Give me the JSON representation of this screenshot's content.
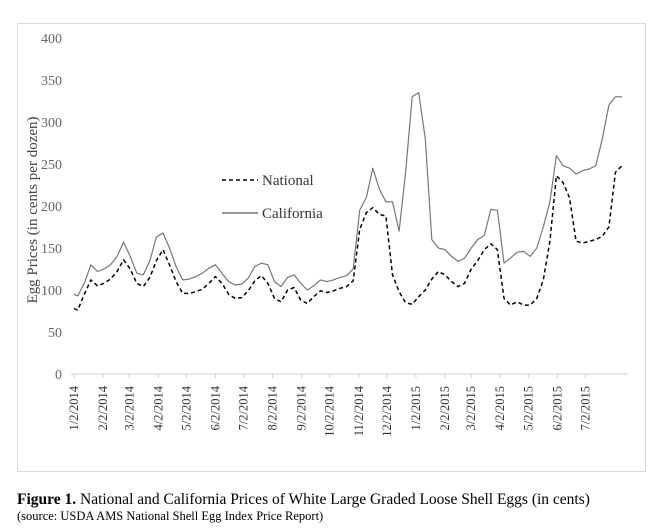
{
  "figure": {
    "label": "Figure 1.",
    "caption": " National and California Prices of White Large Graded Loose Shell Eggs (in cents)",
    "source": "(source: USDA AMS National Shell Egg Index Price Report)"
  },
  "chart_data": {
    "type": "line",
    "title": "",
    "xlabel": "",
    "ylabel": "Egg Prices (in cents per dozen)",
    "ylim": [
      0,
      400
    ],
    "yticks": [
      "0",
      "50",
      "100",
      "150",
      "200",
      "250",
      "300",
      "350",
      "400"
    ],
    "xticks": [
      "1/2/2014",
      "2/2/2014",
      "3/2/2014",
      "4/2/2014",
      "5/2/2014",
      "6/2/2014",
      "7/2/2014",
      "8/2/2014",
      "9/2/2014",
      "10/2/2014",
      "11/2/2014",
      "12/2/2014",
      "1/2/2015",
      "2/2/2015",
      "3/2/2015",
      "4/2/2015",
      "5/2/2015",
      "6/2/2015",
      "7/2/2015"
    ],
    "grid": false,
    "legend_position": "center-left",
    "series": [
      {
        "name": "National",
        "style": "dashed",
        "color": "#000000",
        "x": [
          "2014-01-02",
          "2014-01-06",
          "2014-01-13",
          "2014-01-20",
          "2014-01-27",
          "2014-02-03",
          "2014-02-10",
          "2014-02-17",
          "2014-02-24",
          "2014-03-03",
          "2014-03-10",
          "2014-03-17",
          "2014-03-24",
          "2014-03-31",
          "2014-04-07",
          "2014-04-14",
          "2014-04-21",
          "2014-04-28",
          "2014-05-05",
          "2014-05-12",
          "2014-05-19",
          "2014-05-26",
          "2014-06-02",
          "2014-06-09",
          "2014-06-16",
          "2014-06-23",
          "2014-06-30",
          "2014-07-07",
          "2014-07-14",
          "2014-07-21",
          "2014-07-28",
          "2014-08-04",
          "2014-08-11",
          "2014-08-18",
          "2014-08-25",
          "2014-09-01",
          "2014-09-08",
          "2014-09-15",
          "2014-09-22",
          "2014-09-29",
          "2014-10-06",
          "2014-10-13",
          "2014-10-20",
          "2014-10-27",
          "2014-11-03",
          "2014-11-10",
          "2014-11-17",
          "2014-11-24",
          "2014-12-01",
          "2014-12-08",
          "2014-12-15",
          "2014-12-22",
          "2014-12-29",
          "2015-01-05",
          "2015-01-12",
          "2015-01-19",
          "2015-01-26",
          "2015-02-02",
          "2015-02-09",
          "2015-02-16",
          "2015-02-23",
          "2015-03-02",
          "2015-03-09",
          "2015-03-16",
          "2015-03-23",
          "2015-03-30",
          "2015-04-06",
          "2015-04-13",
          "2015-04-20",
          "2015-04-27",
          "2015-05-04",
          "2015-05-11",
          "2015-05-18",
          "2015-05-25",
          "2015-06-01",
          "2015-06-08",
          "2015-06-15",
          "2015-06-22",
          "2015-06-29",
          "2015-07-06",
          "2015-07-13",
          "2015-07-20",
          "2015-07-27",
          "2015-08-03",
          "2015-08-10"
        ],
        "values": [
          78,
          76,
          95,
          112,
          105,
          108,
          113,
          122,
          136,
          125,
          108,
          104,
          115,
          135,
          148,
          130,
          110,
          96,
          96,
          98,
          101,
          108,
          116,
          108,
          95,
          90,
          91,
          99,
          111,
          117,
          108,
          90,
          86,
          100,
          103,
          88,
          84,
          92,
          99,
          97,
          99,
          102,
          104,
          111,
          172,
          192,
          198,
          190,
          188,
          118,
          98,
          85,
          83,
          92,
          100,
          113,
          122,
          118,
          110,
          104,
          108,
          125,
          135,
          148,
          155,
          148,
          90,
          82,
          86,
          82,
          82,
          90,
          112,
          158,
          236,
          228,
          210,
          158,
          156,
          158,
          160,
          164,
          175,
          240,
          248
        ]
      },
      {
        "name": "California",
        "style": "solid",
        "color": "#777777",
        "x": [
          "2014-01-02",
          "2014-01-06",
          "2014-01-13",
          "2014-01-20",
          "2014-01-27",
          "2014-02-03",
          "2014-02-10",
          "2014-02-17",
          "2014-02-24",
          "2014-03-03",
          "2014-03-10",
          "2014-03-17",
          "2014-03-24",
          "2014-03-31",
          "2014-04-07",
          "2014-04-14",
          "2014-04-21",
          "2014-04-28",
          "2014-05-05",
          "2014-05-12",
          "2014-05-19",
          "2014-05-26",
          "2014-06-02",
          "2014-06-09",
          "2014-06-16",
          "2014-06-23",
          "2014-06-30",
          "2014-07-07",
          "2014-07-14",
          "2014-07-21",
          "2014-07-28",
          "2014-08-04",
          "2014-08-11",
          "2014-08-18",
          "2014-08-25",
          "2014-09-01",
          "2014-09-08",
          "2014-09-15",
          "2014-09-22",
          "2014-09-29",
          "2014-10-06",
          "2014-10-13",
          "2014-10-20",
          "2014-10-27",
          "2014-11-03",
          "2014-11-10",
          "2014-11-17",
          "2014-11-24",
          "2014-12-01",
          "2014-12-08",
          "2014-12-15",
          "2014-12-22",
          "2014-12-29",
          "2015-01-05",
          "2015-01-12",
          "2015-01-19",
          "2015-01-26",
          "2015-02-02",
          "2015-02-09",
          "2015-02-16",
          "2015-02-23",
          "2015-03-02",
          "2015-03-09",
          "2015-03-16",
          "2015-03-23",
          "2015-03-30",
          "2015-04-06",
          "2015-04-13",
          "2015-04-20",
          "2015-04-27",
          "2015-05-04",
          "2015-05-11",
          "2015-05-18",
          "2015-05-25",
          "2015-06-01",
          "2015-06-08",
          "2015-06-15",
          "2015-06-22",
          "2015-06-29",
          "2015-07-06",
          "2015-07-13",
          "2015-07-20",
          "2015-07-27",
          "2015-08-03",
          "2015-08-10"
        ],
        "values": [
          95,
          93,
          108,
          130,
          122,
          125,
          130,
          140,
          157,
          140,
          120,
          118,
          135,
          163,
          168,
          150,
          128,
          112,
          113,
          116,
          120,
          126,
          130,
          120,
          110,
          106,
          107,
          114,
          128,
          132,
          130,
          110,
          104,
          115,
          118,
          108,
          100,
          105,
          112,
          110,
          112,
          115,
          117,
          125,
          195,
          210,
          245,
          220,
          205,
          205,
          170,
          240,
          330,
          335,
          280,
          160,
          150,
          148,
          140,
          134,
          138,
          150,
          160,
          165,
          196,
          195,
          132,
          138,
          145,
          146,
          140,
          150,
          175,
          205,
          260,
          248,
          245,
          238,
          242,
          244,
          248,
          280,
          320,
          330,
          330
        ]
      }
    ]
  }
}
